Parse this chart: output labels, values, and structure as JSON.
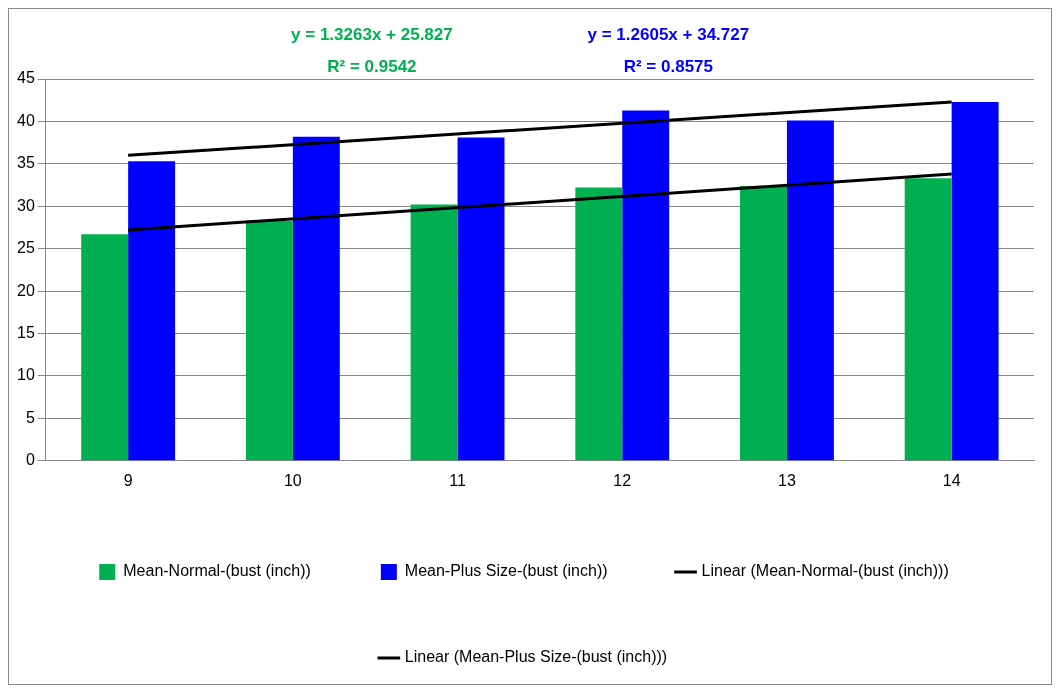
{
  "chart_data": {
    "type": "bar",
    "categories": [
      "9",
      "10",
      "11",
      "12",
      "13",
      "14"
    ],
    "series": [
      {
        "name": "Mean-Normal-(bust (inch))",
        "color": "#00b050",
        "values": [
          26.7,
          28.3,
          30.2,
          32.2,
          32.4,
          33.3
        ]
      },
      {
        "name": "Mean-Plus Size-(bust (inch))",
        "color": "#0000ff",
        "values": [
          35.3,
          38.2,
          38.1,
          41.3,
          40.1,
          42.3
        ]
      },
      {
        "name": "Linear (Mean-Normal-(bust (inch)))",
        "type": "line",
        "color": "#000000",
        "values": [
          27.2,
          null,
          null,
          null,
          null,
          33.8
        ]
      },
      {
        "name": "Linear (Mean-Plus Size-(bust (inch)))",
        "type": "line",
        "color": "#000000",
        "values": [
          36.0,
          null,
          null,
          null,
          null,
          42.3
        ]
      }
    ],
    "annotations": [
      "y = 1.3263x + 25.827\nR² = 0.9542",
      "y = 1.2605x + 34.727\nR² = 0.8575"
    ],
    "ylim": [
      0,
      45
    ],
    "yticks": [
      0,
      5,
      10,
      15,
      20,
      25,
      30,
      35,
      40,
      45
    ],
    "grid": "y",
    "legend": "bottom"
  }
}
